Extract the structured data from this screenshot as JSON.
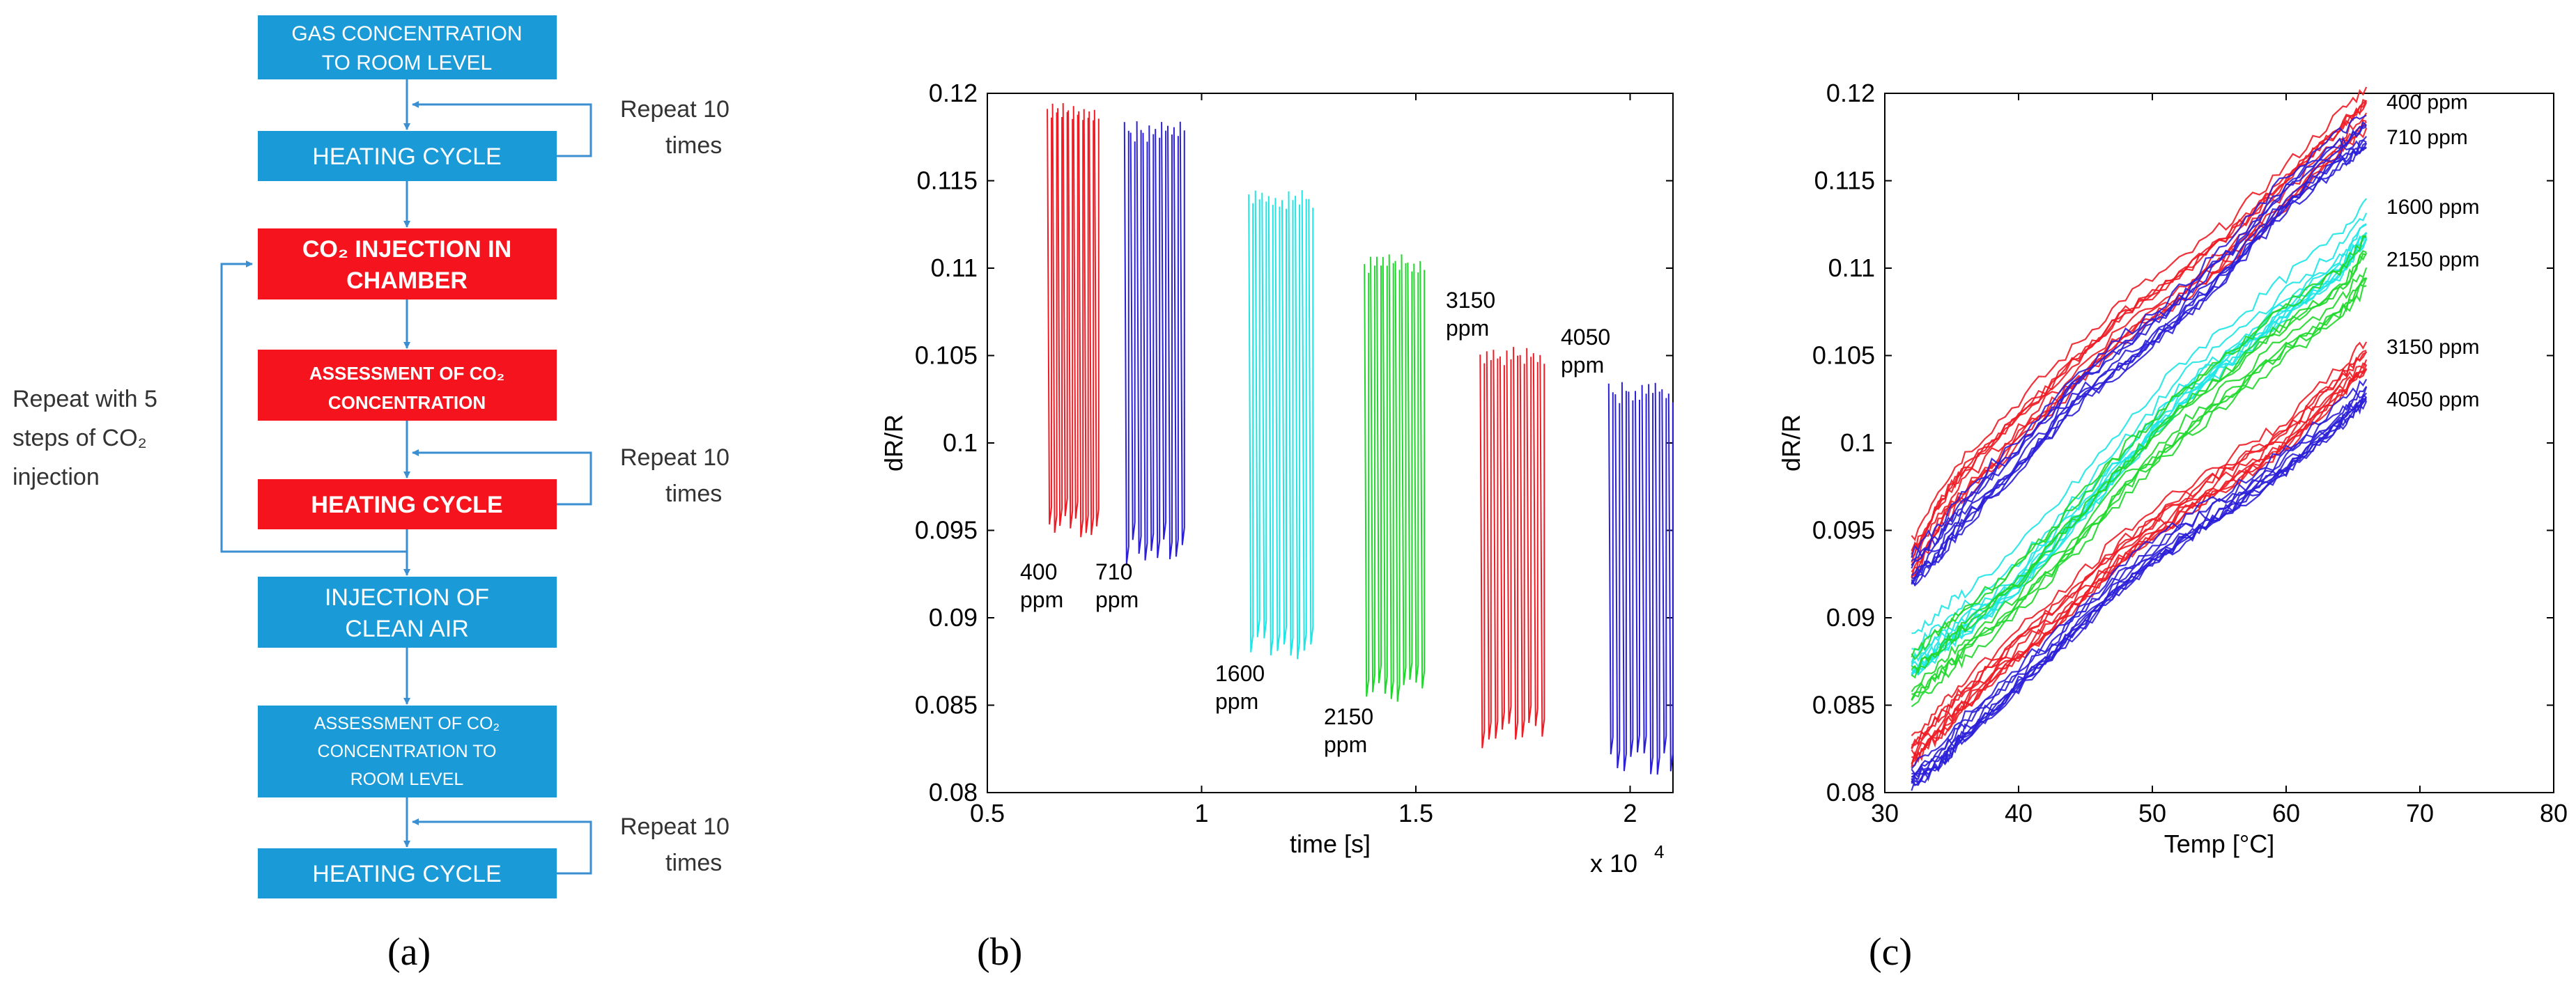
{
  "colors": {
    "box_blue": "#1A9BD7",
    "box_red": "#F5141E",
    "arrow": "#3B8FD1",
    "series_red": "#EE1C25",
    "series_blue": "#2B1FD8",
    "series_cyan": "#1FE5E5",
    "series_green": "#1FD82B"
  },
  "panel_a": {
    "caption": "(a)",
    "boxes": [
      {
        "line1": "GAS CONCENTRATION",
        "line2": "TO ROOM LEVEL",
        "color": "blue"
      },
      {
        "line1": "HEATING CYCLE",
        "line2": "",
        "color": "blue"
      },
      {
        "line1": "CO₂ INJECTION IN",
        "line2": "CHAMBER",
        "color": "red"
      },
      {
        "line1": "ASSESSMENT OF CO₂",
        "line2": "CONCENTRATION",
        "color": "red"
      },
      {
        "line1": "HEATING CYCLE",
        "line2": "",
        "color": "red"
      },
      {
        "line1": "INJECTION OF",
        "line2": "CLEAN AIR",
        "color": "blue"
      },
      {
        "line1": "ASSESSMENT OF CO₂",
        "line2": "CONCENTRATION TO",
        "line3": "ROOM LEVEL",
        "color": "blue"
      },
      {
        "line1": "HEATING CYCLE",
        "line2": "",
        "color": "blue"
      }
    ],
    "repeat_labels": [
      {
        "line1": "Repeat 10",
        "line2": "times"
      },
      {
        "line1": "Repeat 10",
        "line2": "times"
      },
      {
        "line1": "Repeat 10",
        "line2": "times"
      }
    ],
    "outer_loop_label": {
      "line1": "Repeat with 5",
      "line2": "steps of CO₂",
      "line3": "injection"
    }
  },
  "chart_data": [
    {
      "type": "line",
      "caption": "(b)",
      "title": "",
      "xlabel": "time [s]",
      "ylabel": "dR/R",
      "x_multiplier_label": "x 10",
      "x_multiplier_exp": "4",
      "xlim": [
        0.5,
        2.1
      ],
      "ylim": [
        0.08,
        0.12
      ],
      "xticks": [
        "0.5",
        "1",
        "1.5",
        "2"
      ],
      "xtick_values": [
        0.5,
        1,
        1.5,
        2
      ],
      "yticks": [
        "0.08",
        "0.085",
        "0.09",
        "0.095",
        "0.1",
        "0.105",
        "0.11",
        "0.115",
        "0.12"
      ],
      "ytick_values": [
        0.08,
        0.085,
        0.09,
        0.095,
        0.1,
        0.105,
        0.11,
        0.115,
        0.12
      ],
      "series": [
        {
          "name": "400 ppm",
          "label_line1": "400",
          "label_line2": "ppm",
          "color": "series_red",
          "x_start": 0.64,
          "x_end": 0.75,
          "y_min": 0.0945,
          "y_max": 0.1195
        },
        {
          "name": "710 ppm",
          "label_line1": "710",
          "label_line2": "ppm",
          "color": "series_blue",
          "x_start": 0.82,
          "x_end": 0.95,
          "y_min": 0.093,
          "y_max": 0.1185
        },
        {
          "name": "1600 ppm",
          "label_line1": "1600",
          "label_line2": "ppm",
          "color": "series_cyan",
          "x_start": 1.11,
          "x_end": 1.25,
          "y_min": 0.0875,
          "y_max": 0.1145
        },
        {
          "name": "2150 ppm",
          "label_line1": "2150",
          "label_line2": "ppm",
          "color": "series_green",
          "x_start": 1.38,
          "x_end": 1.51,
          "y_min": 0.085,
          "y_max": 0.111
        },
        {
          "name": "3150 ppm",
          "label_line1": "3150",
          "label_line2": "ppm",
          "color": "series_red",
          "x_start": 1.65,
          "x_end": 1.79,
          "y_min": 0.0825,
          "y_max": 0.1055
        },
        {
          "name": "4050 ppm",
          "label_line1": "4050",
          "label_line2": "ppm",
          "color": "series_blue",
          "x_start": 1.95,
          "x_end": 2.09,
          "y_min": 0.081,
          "y_max": 0.1035
        }
      ]
    },
    {
      "type": "line",
      "caption": "(c)",
      "title": "",
      "xlabel": "Temp [°C]",
      "ylabel": "dR/R",
      "xlim": [
        30,
        80
      ],
      "ylim": [
        0.08,
        0.12
      ],
      "xticks": [
        "30",
        "40",
        "50",
        "60",
        "70",
        "80"
      ],
      "xtick_values": [
        30,
        40,
        50,
        60,
        70,
        80
      ],
      "yticks": [
        "0.08",
        "0.085",
        "0.09",
        "0.095",
        "0.1",
        "0.105",
        "0.11",
        "0.115",
        "0.12"
      ],
      "ytick_values": [
        0.08,
        0.085,
        0.09,
        0.095,
        0.1,
        0.105,
        0.11,
        0.115,
        0.12
      ],
      "series": [
        {
          "name": "400 ppm",
          "color": "series_red",
          "x": [
            32,
            34,
            36,
            40,
            44,
            48,
            52,
            56,
            60,
            64,
            66
          ],
          "y": [
            0.0935,
            0.0965,
            0.0985,
            0.1015,
            0.1045,
            0.1075,
            0.1095,
            0.112,
            0.115,
            0.118,
            0.1195
          ],
          "spread": 0.0015
        },
        {
          "name": "710 ppm",
          "color": "series_blue",
          "x": [
            32,
            34,
            36,
            40,
            44,
            48,
            52,
            56,
            60,
            64,
            66
          ],
          "y": [
            0.093,
            0.0945,
            0.0965,
            0.0995,
            0.103,
            0.1055,
            0.108,
            0.111,
            0.1145,
            0.117,
            0.118
          ],
          "spread": 0.0012
        },
        {
          "name": "1600 ppm",
          "color": "series_cyan",
          "x": [
            32,
            34,
            36,
            40,
            44,
            48,
            52,
            56,
            60,
            64,
            66
          ],
          "y": [
            0.088,
            0.0893,
            0.0905,
            0.093,
            0.0965,
            0.1,
            0.1035,
            0.106,
            0.1085,
            0.111,
            0.113
          ],
          "spread": 0.0015
        },
        {
          "name": "2150 ppm",
          "color": "series_green",
          "x": [
            32,
            34,
            36,
            40,
            44,
            48,
            52,
            56,
            60,
            64,
            66
          ],
          "y": [
            0.0865,
            0.0878,
            0.0892,
            0.0918,
            0.095,
            0.0985,
            0.1015,
            0.104,
            0.1065,
            0.1085,
            0.1105
          ],
          "spread": 0.0018
        },
        {
          "name": "3150 ppm",
          "color": "series_red",
          "x": [
            32,
            34,
            36,
            40,
            44,
            48,
            52,
            56,
            60,
            64,
            66
          ],
          "y": [
            0.0825,
            0.084,
            0.0857,
            0.0885,
            0.0912,
            0.0942,
            0.0965,
            0.0985,
            0.1005,
            0.1035,
            0.105
          ],
          "spread": 0.001
        },
        {
          "name": "4050 ppm",
          "color": "series_blue",
          "x": [
            32,
            34,
            36,
            40,
            44,
            48,
            52,
            56,
            60,
            64,
            66
          ],
          "y": [
            0.081,
            0.082,
            0.0838,
            0.0865,
            0.0895,
            0.0925,
            0.0948,
            0.0968,
            0.099,
            0.1015,
            0.103
          ],
          "spread": 0.0008
        }
      ],
      "series_labels": [
        "400 ppm",
        "710 ppm",
        "1600 ppm",
        "2150 ppm",
        "3150 ppm",
        "4050 ppm"
      ]
    }
  ]
}
